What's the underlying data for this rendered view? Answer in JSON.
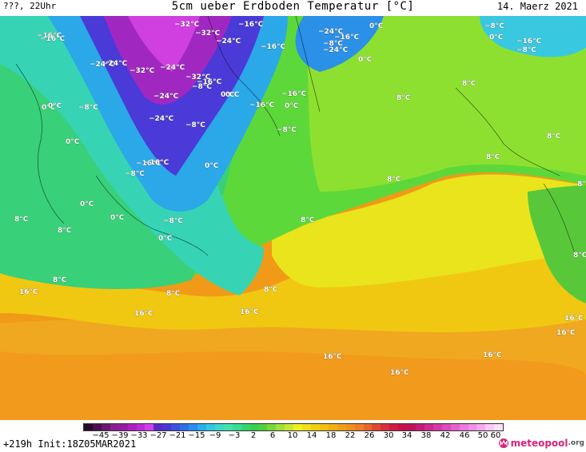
{
  "header": {
    "left": "???, 22Uhr",
    "title": "5cm ueber Erdboden Temperatur [°C]",
    "date": "14. Maerz 2021"
  },
  "footer": {
    "run_info": "+219h  Init:18Z05MAR2021",
    "logo_brand": "meteopool",
    "logo_tld": ".org"
  },
  "legend": {
    "ticks": [
      "−45",
      "−39",
      "−33",
      "−27",
      "−21",
      "−15",
      "−9",
      "−3",
      "2",
      "6",
      "10",
      "14",
      "18",
      "22",
      "26",
      "30",
      "34",
      "38",
      "42",
      "46",
      "50",
      "60"
    ],
    "colors": [
      "#2a0a2a",
      "#4a1050",
      "#6a1870",
      "#8a2090",
      "#9a1aa8",
      "#b020c0",
      "#c02ad8",
      "#d040e8",
      "#5a28c8",
      "#4a34d8",
      "#3a50e0",
      "#2f6ee6",
      "#2a8ef0",
      "#28aef0",
      "#30c8e0",
      "#3cd8c8",
      "#44e0b0",
      "#38e090",
      "#30d870",
      "#38d050",
      "#50d040",
      "#78d838",
      "#a0e038",
      "#c8e830",
      "#f0f020",
      "#f0e018",
      "#f0d010",
      "#f0c010",
      "#f0b010",
      "#f0a018",
      "#f09020",
      "#ee7f22",
      "#e8652a",
      "#e04a32",
      "#d8303a",
      "#d01a40",
      "#c81048",
      "#c0105a",
      "#c81878",
      "#d02890",
      "#d838a8",
      "#e048c0",
      "#e860d0",
      "#f078e0",
      "#f090e8",
      "#f8a8f0",
      "#fbc8f6",
      "#fde0fa"
    ]
  },
  "map_labels": [
    {
      "text": "−32°C"
    },
    {
      "text": "−16°C"
    },
    {
      "text": "0°C"
    },
    {
      "text": "−8°C"
    },
    {
      "text": "−16°C"
    },
    {
      "text": "−24°C"
    },
    {
      "text": "−16°C"
    },
    {
      "text": "−32°C"
    },
    {
      "text": "−24°C"
    },
    {
      "text": "−16°C"
    },
    {
      "text": "−16°C"
    },
    {
      "text": "−24°C"
    },
    {
      "text": "0°C"
    },
    {
      "text": "−24°C"
    },
    {
      "text": "−8°C"
    },
    {
      "text": "−16°C"
    },
    {
      "text": "−8°C"
    },
    {
      "text": "0°C"
    },
    {
      "text": "−24°C"
    },
    {
      "text": "−32°C"
    },
    {
      "text": "−24°C"
    },
    {
      "text": "−32°C"
    },
    {
      "text": "−8°C"
    },
    {
      "text": "0°C"
    },
    {
      "text": "−24°C"
    },
    {
      "text": "−16°C"
    },
    {
      "text": "0°C"
    },
    {
      "text": "−16°C"
    },
    {
      "text": "−16°C"
    },
    {
      "text": "0°C"
    },
    {
      "text": "8°C"
    },
    {
      "text": "8°C"
    },
    {
      "text": "0°C"
    },
    {
      "text": "−8°C"
    },
    {
      "text": "−24°C"
    },
    {
      "text": "−16°C"
    },
    {
      "text": "−8°C"
    },
    {
      "text": "0°C"
    },
    {
      "text": "8°C"
    },
    {
      "text": "−8°C"
    },
    {
      "text": "0°C"
    },
    {
      "text": "−16°C"
    },
    {
      "text": "−8°C"
    },
    {
      "text": "0°C"
    },
    {
      "text": "8°C"
    },
    {
      "text": "8°C"
    },
    {
      "text": "0°C"
    },
    {
      "text": "8°C"
    },
    {
      "text": "8°C"
    },
    {
      "text": "8°C"
    },
    {
      "text": "0°C"
    },
    {
      "text": "−8°C"
    },
    {
      "text": "0°C"
    },
    {
      "text": "8°C"
    },
    {
      "text": "8°C"
    },
    {
      "text": "8°C"
    },
    {
      "text": "8°C"
    },
    {
      "text": "16°C"
    },
    {
      "text": "8°C"
    },
    {
      "text": "16°C"
    },
    {
      "text": "16°C"
    },
    {
      "text": "16°C"
    },
    {
      "text": "16°C"
    },
    {
      "text": "16°C"
    },
    {
      "text": "16°C"
    },
    {
      "text": "16°C"
    }
  ]
}
